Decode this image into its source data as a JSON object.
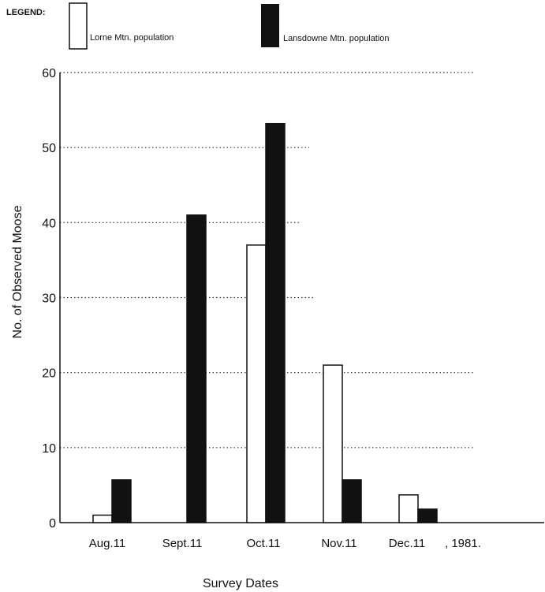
{
  "chart_data": {
    "type": "bar",
    "legend_title": "LEGEND:",
    "legend_position": "top-left",
    "categories": [
      "Aug.11",
      "Sept.11",
      "Oct.11",
      "Nov.11",
      "Dec.11"
    ],
    "year_suffix": ", 1981.",
    "series": [
      {
        "name": "Lorne Mtn. population",
        "values": [
          1,
          0,
          37,
          21,
          3.7
        ],
        "color": "#ffffff"
      },
      {
        "name": "Lansdowne Mtn. population",
        "values": [
          5.7,
          41,
          53.2,
          5.7,
          1.8
        ],
        "color": "#111111"
      }
    ],
    "xlabel": "Survey Dates",
    "ylabel": "No. of Observed Moose",
    "ylim": [
      0,
      60
    ],
    "yticks": [
      0,
      10,
      20,
      30,
      40,
      50,
      60
    ],
    "grid": "dotted horizontal"
  }
}
